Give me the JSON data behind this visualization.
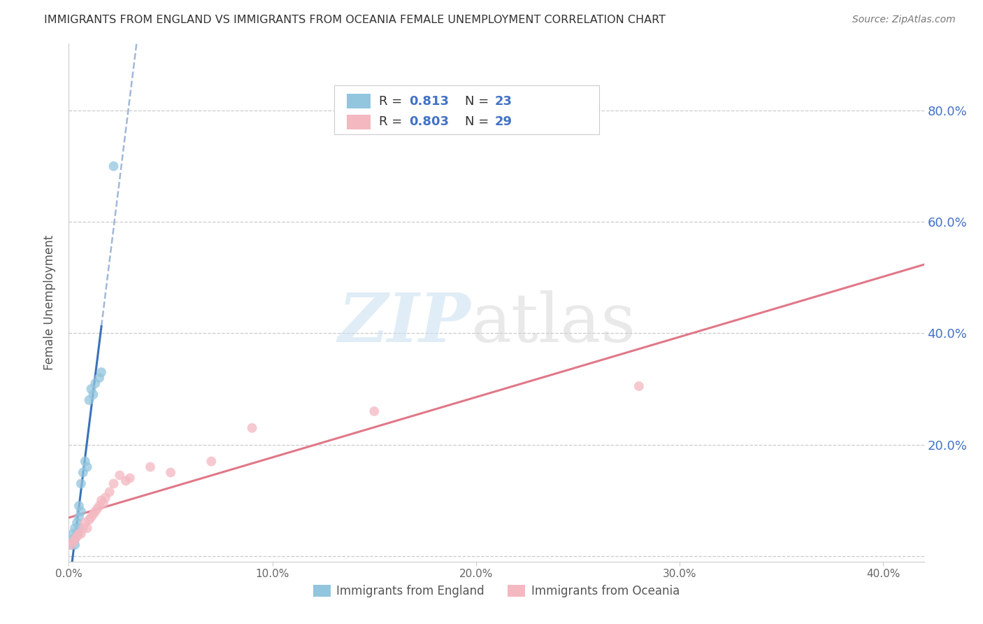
{
  "title": "IMMIGRANTS FROM ENGLAND VS IMMIGRANTS FROM OCEANIA FEMALE UNEMPLOYMENT CORRELATION CHART",
  "source": "Source: ZipAtlas.com",
  "ylabel": "Female Unemployment",
  "xlim": [
    0.0,
    0.42
  ],
  "ylim": [
    -0.01,
    0.92
  ],
  "yticks": [
    0.0,
    0.2,
    0.4,
    0.6,
    0.8
  ],
  "xticks": [
    0.0,
    0.1,
    0.2,
    0.3,
    0.4
  ],
  "xtick_labels": [
    "0.0%",
    "10.0%",
    "20.0%",
    "30.0%",
    "40.0%"
  ],
  "ytick_labels_right": [
    "",
    "20.0%",
    "40.0%",
    "60.0%",
    "80.0%"
  ],
  "england_color": "#92c5de",
  "oceania_color": "#f4b8c1",
  "england_R": "0.813",
  "england_N": "23",
  "oceania_R": "0.803",
  "oceania_N": "29",
  "england_scatter_x": [
    0.001,
    0.002,
    0.002,
    0.003,
    0.003,
    0.003,
    0.004,
    0.004,
    0.005,
    0.005,
    0.005,
    0.006,
    0.006,
    0.007,
    0.008,
    0.009,
    0.01,
    0.011,
    0.012,
    0.013,
    0.015,
    0.016,
    0.022
  ],
  "england_scatter_y": [
    0.02,
    0.03,
    0.04,
    0.02,
    0.03,
    0.05,
    0.04,
    0.06,
    0.05,
    0.07,
    0.09,
    0.08,
    0.13,
    0.15,
    0.17,
    0.16,
    0.28,
    0.3,
    0.29,
    0.31,
    0.32,
    0.33,
    0.7
  ],
  "oceania_scatter_x": [
    0.001,
    0.002,
    0.003,
    0.004,
    0.005,
    0.006,
    0.007,
    0.008,
    0.009,
    0.01,
    0.011,
    0.012,
    0.013,
    0.014,
    0.015,
    0.016,
    0.017,
    0.018,
    0.02,
    0.022,
    0.025,
    0.028,
    0.03,
    0.04,
    0.05,
    0.07,
    0.09,
    0.15,
    0.28
  ],
  "oceania_scatter_y": [
    0.02,
    0.025,
    0.03,
    0.035,
    0.04,
    0.04,
    0.05,
    0.06,
    0.05,
    0.065,
    0.07,
    0.075,
    0.08,
    0.085,
    0.09,
    0.1,
    0.095,
    0.105,
    0.115,
    0.13,
    0.145,
    0.135,
    0.14,
    0.16,
    0.15,
    0.17,
    0.23,
    0.26,
    0.305
  ],
  "background_color": "#ffffff",
  "grid_color": "#cccccc",
  "title_color": "#333333",
  "right_tick_color": "#4472c4",
  "legend_text_dark": "#333333",
  "legend_val_color": "#4472c4"
}
